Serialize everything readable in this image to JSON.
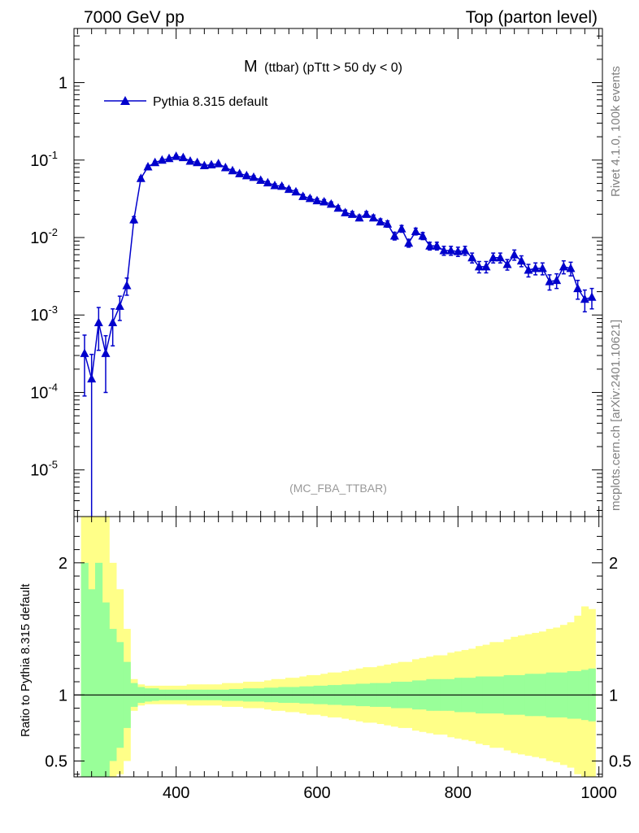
{
  "header": {
    "left": "7000 GeV pp",
    "right": "Top (parton level)"
  },
  "side_labels": {
    "rivet": "Rivet 4.1.0,  100k events",
    "mcplots": "mcplots.cern.ch [arXiv:2401.10621]"
  },
  "plot": {
    "title_main": "M",
    "title_rest": "(ttbar) (pTtt > 50 dy < 0)",
    "watermark": "(MC_FBA_TTBAR)",
    "legend_label": "Pythia 8.315 default",
    "ratio_ylabel": "Ratio to Pythia 8.315 default"
  },
  "colors": {
    "series": "#0000cc",
    "band_inner": "#99ff99",
    "band_outer": "#ffff88",
    "watermark": "#999999",
    "side_text": "#808080"
  },
  "chart_data": [
    {
      "type": "line",
      "yscale": "log",
      "xlim": [
        255,
        1005
      ],
      "ylim": [
        2.5e-06,
        5
      ],
      "ylabel_ticks": [
        "1",
        "10^-1",
        "10^-2",
        "10^-3",
        "10^-4",
        "10^-5"
      ],
      "xlabel": "",
      "series": [
        {
          "name": "Pythia 8.315 default",
          "x": [
            270,
            280,
            290,
            300,
            310,
            320,
            330,
            340,
            350,
            360,
            370,
            380,
            390,
            400,
            410,
            420,
            430,
            440,
            450,
            460,
            470,
            480,
            490,
            500,
            510,
            520,
            530,
            540,
            550,
            560,
            570,
            580,
            590,
            600,
            610,
            620,
            630,
            640,
            650,
            660,
            670,
            680,
            690,
            700,
            710,
            720,
            730,
            740,
            750,
            760,
            770,
            780,
            790,
            800,
            810,
            820,
            830,
            840,
            850,
            860,
            870,
            880,
            890,
            900,
            910,
            920,
            930,
            940,
            950,
            960,
            970,
            980,
            990
          ],
          "y": [
            0.00032,
            0.00015,
            0.0008,
            0.00032,
            0.0008,
            0.0013,
            0.0024,
            0.017,
            0.058,
            0.082,
            0.093,
            0.1,
            0.105,
            0.112,
            0.108,
            0.097,
            0.093,
            0.085,
            0.087,
            0.09,
            0.08,
            0.073,
            0.067,
            0.063,
            0.06,
            0.055,
            0.051,
            0.047,
            0.046,
            0.042,
            0.039,
            0.034,
            0.032,
            0.03,
            0.029,
            0.027,
            0.024,
            0.021,
            0.02,
            0.018,
            0.02,
            0.018,
            0.016,
            0.015,
            0.0105,
            0.013,
            0.0085,
            0.012,
            0.0105,
            0.0078,
            0.0078,
            0.0068,
            0.0068,
            0.0066,
            0.0068,
            0.0055,
            0.0042,
            0.0042,
            0.0055,
            0.0055,
            0.0045,
            0.006,
            0.005,
            0.0038,
            0.004,
            0.004,
            0.0027,
            0.0028,
            0.0042,
            0.004,
            0.0022,
            0.0016,
            0.0017
          ],
          "yerr": [
            0.00023,
            0.00016,
            0.00045,
            0.00022,
            0.0004,
            0.00045,
            0.0006,
            0.0016,
            0.003,
            0.0035,
            0.0035,
            0.0037,
            0.0038,
            0.004,
            0.0039,
            0.0037,
            0.0036,
            0.0034,
            0.0034,
            0.0035,
            0.0033,
            0.0031,
            0.003,
            0.0028,
            0.0028,
            0.0026,
            0.0025,
            0.0024,
            0.0024,
            0.0023,
            0.0022,
            0.0021,
            0.002,
            0.0019,
            0.0019,
            0.0018,
            0.0017,
            0.0016,
            0.0016,
            0.0015,
            0.0016,
            0.0015,
            0.0014,
            0.0014,
            0.0012,
            0.0013,
            0.001,
            0.0012,
            0.0011,
            0.0009,
            0.0009,
            0.0009,
            0.0009,
            0.0009,
            0.0009,
            0.0008,
            0.0007,
            0.0007,
            0.0008,
            0.0008,
            0.0007,
            0.0009,
            0.0008,
            0.0007,
            0.0007,
            0.0007,
            0.0006,
            0.0006,
            0.0008,
            0.0008,
            0.0006,
            0.0005,
            0.0005
          ]
        }
      ]
    },
    {
      "type": "area",
      "xlim": [
        255,
        1005
      ],
      "ylim": [
        0.38,
        2.35
      ],
      "xticks": [
        400,
        600,
        800,
        1000
      ],
      "yticks": [
        0.5,
        1,
        2
      ],
      "reference_line": 1,
      "bins_x": [
        270,
        280,
        290,
        300,
        310,
        320,
        330,
        340,
        350,
        360,
        370,
        380,
        390,
        400,
        410,
        420,
        430,
        440,
        450,
        460,
        470,
        480,
        490,
        500,
        510,
        520,
        530,
        540,
        550,
        560,
        570,
        580,
        590,
        600,
        610,
        620,
        630,
        640,
        650,
        660,
        670,
        680,
        690,
        700,
        710,
        720,
        730,
        740,
        750,
        760,
        770,
        780,
        790,
        800,
        810,
        820,
        830,
        840,
        850,
        860,
        870,
        880,
        890,
        900,
        910,
        920,
        930,
        940,
        950,
        960,
        970,
        980,
        990
      ],
      "bin_width": 10,
      "inner_band": {
        "up": [
          2.0,
          1.8,
          2.0,
          1.7,
          1.5,
          1.4,
          1.25,
          1.09,
          1.06,
          1.05,
          1.05,
          1.04,
          1.04,
          1.04,
          1.04,
          1.04,
          1.04,
          1.04,
          1.04,
          1.04,
          1.04,
          1.045,
          1.045,
          1.05,
          1.05,
          1.05,
          1.055,
          1.055,
          1.06,
          1.06,
          1.06,
          1.065,
          1.065,
          1.07,
          1.07,
          1.075,
          1.075,
          1.08,
          1.08,
          1.085,
          1.085,
          1.09,
          1.09,
          1.09,
          1.1,
          1.1,
          1.1,
          1.11,
          1.11,
          1.12,
          1.12,
          1.12,
          1.12,
          1.13,
          1.13,
          1.13,
          1.14,
          1.14,
          1.14,
          1.14,
          1.15,
          1.15,
          1.15,
          1.16,
          1.16,
          1.16,
          1.17,
          1.17,
          1.17,
          1.18,
          1.18,
          1.19,
          1.2
        ],
        "down": [
          0.3,
          0.3,
          0.3,
          0.3,
          0.5,
          0.6,
          0.75,
          0.91,
          0.94,
          0.95,
          0.955,
          0.96,
          0.96,
          0.96,
          0.96,
          0.96,
          0.96,
          0.96,
          0.96,
          0.96,
          0.955,
          0.955,
          0.955,
          0.95,
          0.95,
          0.95,
          0.945,
          0.945,
          0.94,
          0.94,
          0.94,
          0.935,
          0.935,
          0.93,
          0.93,
          0.925,
          0.925,
          0.92,
          0.92,
          0.915,
          0.915,
          0.91,
          0.91,
          0.91,
          0.9,
          0.9,
          0.9,
          0.89,
          0.89,
          0.88,
          0.88,
          0.88,
          0.88,
          0.87,
          0.87,
          0.87,
          0.86,
          0.86,
          0.86,
          0.86,
          0.85,
          0.85,
          0.85,
          0.84,
          0.84,
          0.84,
          0.83,
          0.83,
          0.83,
          0.82,
          0.82,
          0.81,
          0.8
        ]
      },
      "outer_band": {
        "up": [
          2.35,
          2.35,
          2.35,
          2.35,
          2.0,
          1.8,
          1.5,
          1.12,
          1.08,
          1.07,
          1.07,
          1.07,
          1.07,
          1.07,
          1.07,
          1.08,
          1.08,
          1.08,
          1.08,
          1.08,
          1.09,
          1.09,
          1.09,
          1.1,
          1.1,
          1.1,
          1.11,
          1.12,
          1.12,
          1.13,
          1.13,
          1.14,
          1.15,
          1.15,
          1.16,
          1.17,
          1.17,
          1.18,
          1.19,
          1.2,
          1.21,
          1.21,
          1.22,
          1.23,
          1.24,
          1.25,
          1.25,
          1.27,
          1.28,
          1.29,
          1.3,
          1.3,
          1.32,
          1.33,
          1.34,
          1.35,
          1.37,
          1.38,
          1.4,
          1.4,
          1.42,
          1.44,
          1.45,
          1.46,
          1.47,
          1.48,
          1.5,
          1.51,
          1.53,
          1.55,
          1.6,
          1.67,
          1.65
        ],
        "down": [
          0.3,
          0.3,
          0.3,
          0.3,
          0.3,
          0.4,
          0.5,
          0.88,
          0.92,
          0.93,
          0.93,
          0.93,
          0.93,
          0.93,
          0.93,
          0.92,
          0.92,
          0.92,
          0.92,
          0.92,
          0.91,
          0.91,
          0.91,
          0.9,
          0.9,
          0.9,
          0.89,
          0.88,
          0.88,
          0.87,
          0.87,
          0.86,
          0.85,
          0.85,
          0.84,
          0.83,
          0.83,
          0.82,
          0.81,
          0.8,
          0.79,
          0.79,
          0.78,
          0.77,
          0.76,
          0.75,
          0.75,
          0.73,
          0.72,
          0.71,
          0.7,
          0.7,
          0.68,
          0.67,
          0.66,
          0.65,
          0.63,
          0.62,
          0.6,
          0.6,
          0.58,
          0.56,
          0.55,
          0.54,
          0.53,
          0.52,
          0.5,
          0.49,
          0.47,
          0.45,
          0.4,
          0.33,
          0.35
        ]
      }
    }
  ]
}
